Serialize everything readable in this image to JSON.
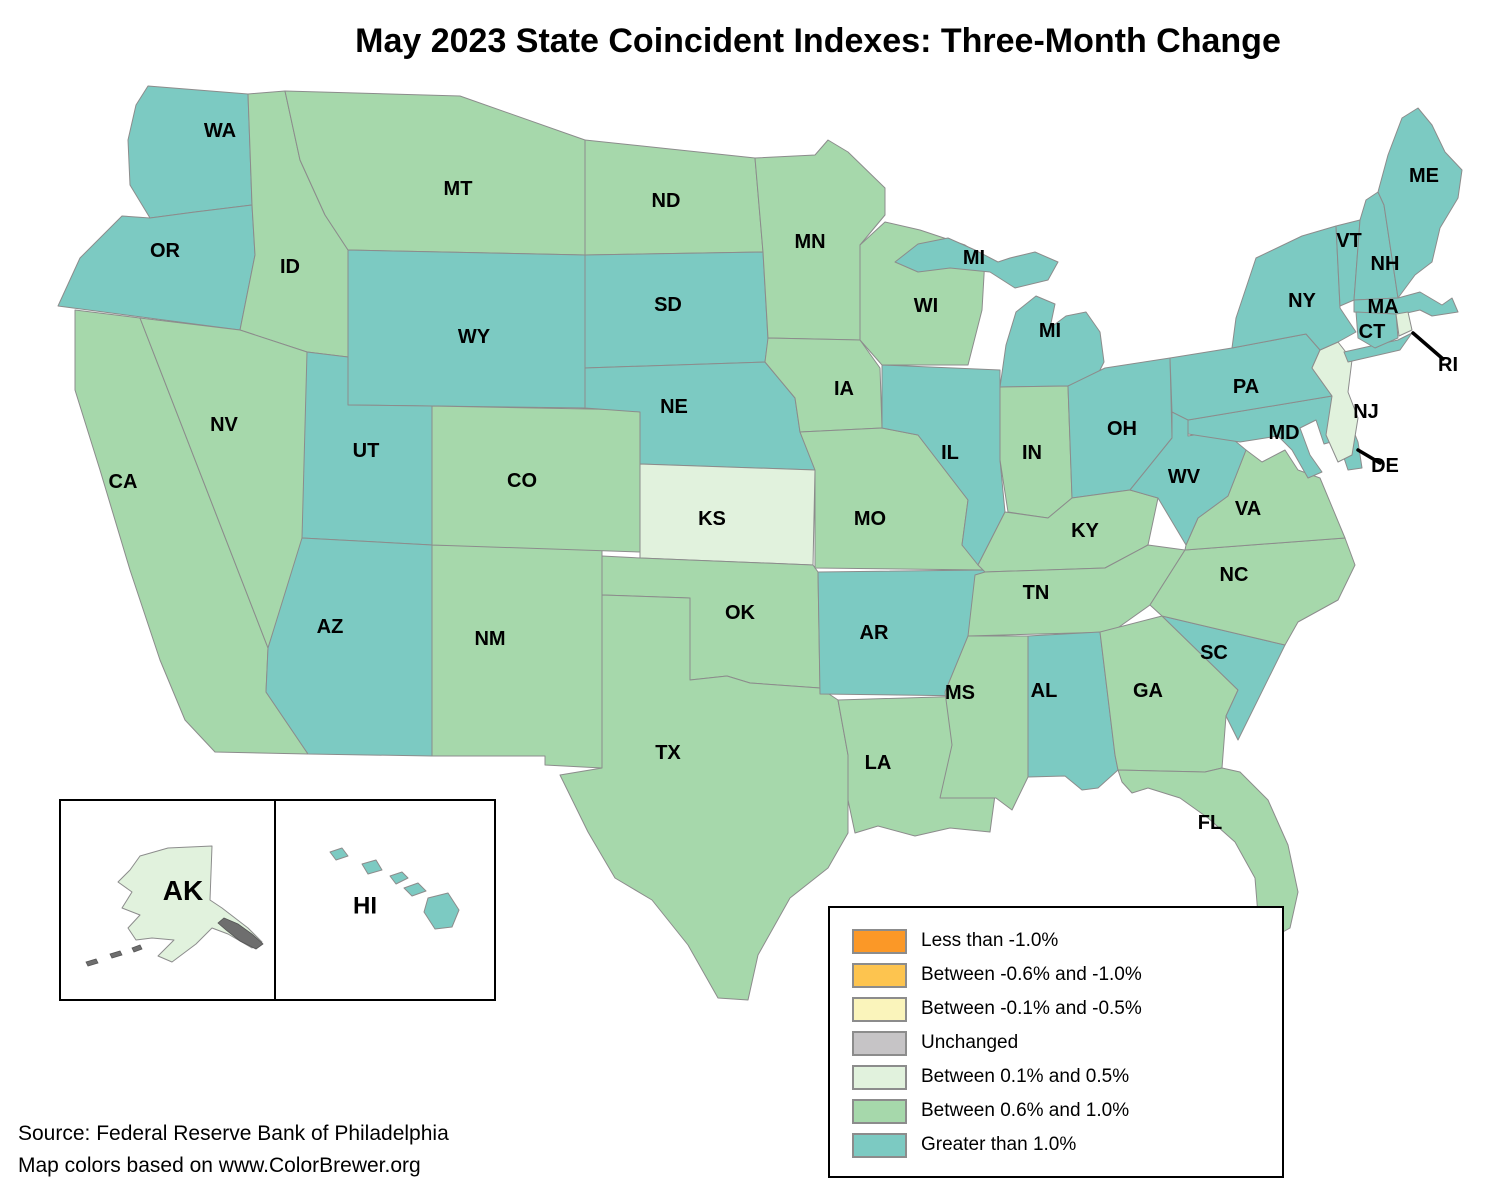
{
  "title": "May 2023 State Coincident Indexes: Three-Month Change",
  "source": {
    "line1": "Source: Federal Reserve Bank of Philadelphia",
    "line2": "Map colors based on www.ColorBrewer.org"
  },
  "legend": {
    "items": [
      {
        "key": "lt_neg1_0",
        "label": "Less than -1.0%",
        "color": "#FB9827"
      },
      {
        "key": "neg0_6_to_neg1_0",
        "label": "Between -0.6% and -1.0%",
        "color": "#FDC44F"
      },
      {
        "key": "neg0_1_to_neg0_5",
        "label": "Between -0.1% and -0.5%",
        "color": "#FAF4BB"
      },
      {
        "key": "unchanged",
        "label": "Unchanged",
        "color": "#C6C4C6"
      },
      {
        "key": "pos0_1_to_0_5",
        "label": "Between 0.1% and 0.5%",
        "color": "#E1F2DD"
      },
      {
        "key": "pos0_6_to_1_0",
        "label": "Between 0.6% and 1.0%",
        "color": "#A6D8AB"
      },
      {
        "key": "gt_1_0",
        "label": "Greater than 1.0%",
        "color": "#7CCAC2"
      }
    ]
  },
  "map_data": {
    "type": "choropleth",
    "region": "United States",
    "measure": "Three-month change in state coincident index, May 2023",
    "states": [
      {
        "abbr": "WA",
        "category": "gt_1_0"
      },
      {
        "abbr": "OR",
        "category": "gt_1_0"
      },
      {
        "abbr": "CA",
        "category": "pos0_6_to_1_0"
      },
      {
        "abbr": "ID",
        "category": "pos0_6_to_1_0"
      },
      {
        "abbr": "NV",
        "category": "pos0_6_to_1_0"
      },
      {
        "abbr": "MT",
        "category": "pos0_6_to_1_0"
      },
      {
        "abbr": "WY",
        "category": "gt_1_0"
      },
      {
        "abbr": "UT",
        "category": "gt_1_0"
      },
      {
        "abbr": "AZ",
        "category": "gt_1_0"
      },
      {
        "abbr": "NM",
        "category": "pos0_6_to_1_0"
      },
      {
        "abbr": "CO",
        "category": "pos0_6_to_1_0"
      },
      {
        "abbr": "ND",
        "category": "pos0_6_to_1_0"
      },
      {
        "abbr": "SD",
        "category": "gt_1_0"
      },
      {
        "abbr": "NE",
        "category": "gt_1_0"
      },
      {
        "abbr": "KS",
        "category": "pos0_1_to_0_5"
      },
      {
        "abbr": "OK",
        "category": "pos0_6_to_1_0"
      },
      {
        "abbr": "TX",
        "category": "pos0_6_to_1_0"
      },
      {
        "abbr": "MN",
        "category": "pos0_6_to_1_0"
      },
      {
        "abbr": "IA",
        "category": "pos0_6_to_1_0"
      },
      {
        "abbr": "MO",
        "category": "pos0_6_to_1_0"
      },
      {
        "abbr": "AR",
        "category": "gt_1_0"
      },
      {
        "abbr": "LA",
        "category": "pos0_6_to_1_0"
      },
      {
        "abbr": "WI",
        "category": "pos0_6_to_1_0"
      },
      {
        "abbr": "IL",
        "category": "gt_1_0"
      },
      {
        "abbr": "MS",
        "category": "pos0_6_to_1_0"
      },
      {
        "abbr": "MI",
        "category": "gt_1_0"
      },
      {
        "abbr": "IN",
        "category": "pos0_6_to_1_0"
      },
      {
        "abbr": "OH",
        "category": "gt_1_0"
      },
      {
        "abbr": "KY",
        "category": "pos0_6_to_1_0"
      },
      {
        "abbr": "TN",
        "category": "pos0_6_to_1_0"
      },
      {
        "abbr": "AL",
        "category": "gt_1_0"
      },
      {
        "abbr": "GA",
        "category": "pos0_6_to_1_0"
      },
      {
        "abbr": "FL",
        "category": "pos0_6_to_1_0"
      },
      {
        "abbr": "SC",
        "category": "gt_1_0"
      },
      {
        "abbr": "NC",
        "category": "pos0_6_to_1_0"
      },
      {
        "abbr": "VA",
        "category": "pos0_6_to_1_0"
      },
      {
        "abbr": "WV",
        "category": "gt_1_0"
      },
      {
        "abbr": "MD",
        "category": "gt_1_0"
      },
      {
        "abbr": "DE",
        "category": "gt_1_0"
      },
      {
        "abbr": "PA",
        "category": "gt_1_0"
      },
      {
        "abbr": "NJ",
        "category": "pos0_1_to_0_5"
      },
      {
        "abbr": "NY",
        "category": "gt_1_0"
      },
      {
        "abbr": "VT",
        "category": "gt_1_0"
      },
      {
        "abbr": "NH",
        "category": "gt_1_0"
      },
      {
        "abbr": "MA",
        "category": "gt_1_0"
      },
      {
        "abbr": "CT",
        "category": "gt_1_0"
      },
      {
        "abbr": "RI",
        "category": "pos0_1_to_0_5"
      },
      {
        "abbr": "ME",
        "category": "gt_1_0"
      },
      {
        "abbr": "AK",
        "category": "pos0_1_to_0_5"
      },
      {
        "abbr": "HI",
        "category": "gt_1_0"
      }
    ]
  }
}
